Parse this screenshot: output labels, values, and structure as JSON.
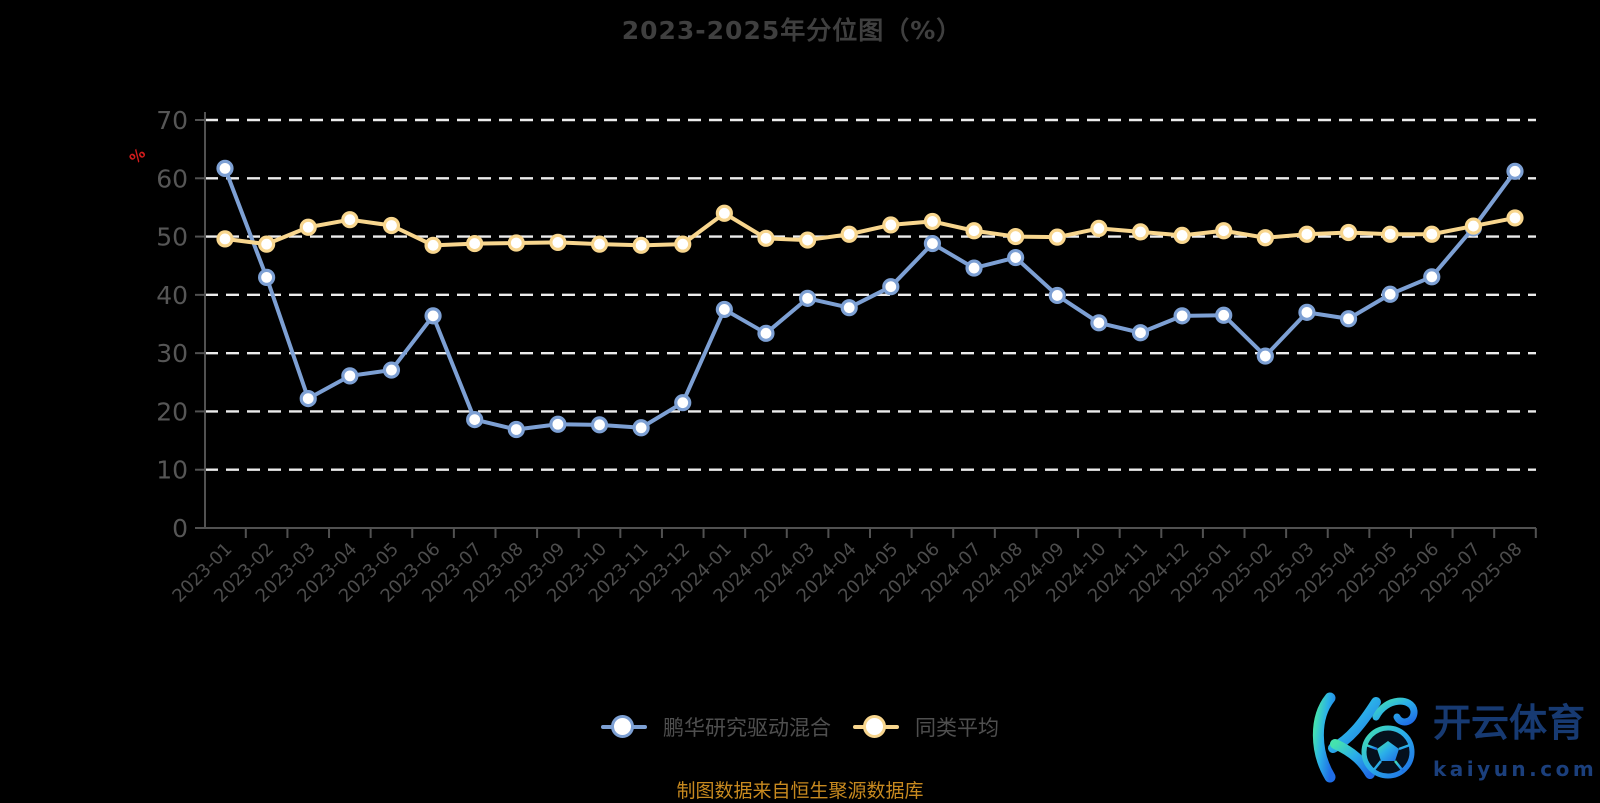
{
  "title": "2023-2025年分位图（%）",
  "y_axis_unit": "%",
  "source_note": "制图数据来自恒生聚源数据库",
  "colors": {
    "background": "#000000",
    "title_text": "#3f3f3f",
    "axis_line": "#515151",
    "axis_label": "#565656",
    "gridline": "#ececec",
    "unit_label_red": "#d21c1c",
    "source_text_orange": "#c7891f",
    "legend_text": "#4f4f4f",
    "watermark_navy": "#173a72"
  },
  "chart_data": {
    "type": "line",
    "x": [
      "2023-01",
      "2023-02",
      "2023-03",
      "2023-04",
      "2023-05",
      "2023-06",
      "2023-07",
      "2023-08",
      "2023-09",
      "2023-10",
      "2023-11",
      "2023-12",
      "2024-01",
      "2024-02",
      "2024-03",
      "2024-04",
      "2024-05",
      "2024-06",
      "2024-07",
      "2024-08",
      "2024-09",
      "2024-10",
      "2024-11",
      "2024-12",
      "2025-01",
      "2025-02",
      "2025-03",
      "2025-04",
      "2025-05",
      "2025-06",
      "2025-07",
      "2025-08"
    ],
    "series": [
      {
        "name": "鹏华研究驱动混合",
        "color": "#7da0d4",
        "values": [
          61.7,
          43.0,
          22.2,
          26.1,
          27.1,
          36.4,
          18.6,
          16.9,
          17.8,
          17.7,
          17.2,
          21.5,
          37.5,
          33.4,
          39.4,
          37.8,
          41.4,
          48.8,
          44.6,
          46.4,
          39.9,
          35.2,
          33.5,
          36.4,
          36.5,
          29.5,
          37.0,
          35.9,
          40.1,
          43.1,
          51.5,
          61.2
        ]
      },
      {
        "name": "同类平均",
        "color": "#f8d68e",
        "values": [
          49.6,
          48.7,
          51.6,
          52.9,
          51.9,
          48.5,
          48.8,
          48.9,
          49.0,
          48.7,
          48.5,
          48.7,
          54.0,
          49.7,
          49.4,
          50.4,
          52.0,
          52.6,
          51.0,
          50.0,
          49.9,
          51.4,
          50.8,
          50.2,
          51.0,
          49.8,
          50.4,
          50.7,
          50.4,
          50.4,
          51.8,
          53.2
        ]
      }
    ],
    "ylabel": "%",
    "xlabel": "",
    "ylim": [
      0,
      70
    ],
    "ytick_interval": 10,
    "grid": "horizontal-dashed-white",
    "legend_position": "bottom-center",
    "x_label_rotation": 45
  },
  "watermark": {
    "cn": "开云体育",
    "domain": "kaiyun.com"
  }
}
